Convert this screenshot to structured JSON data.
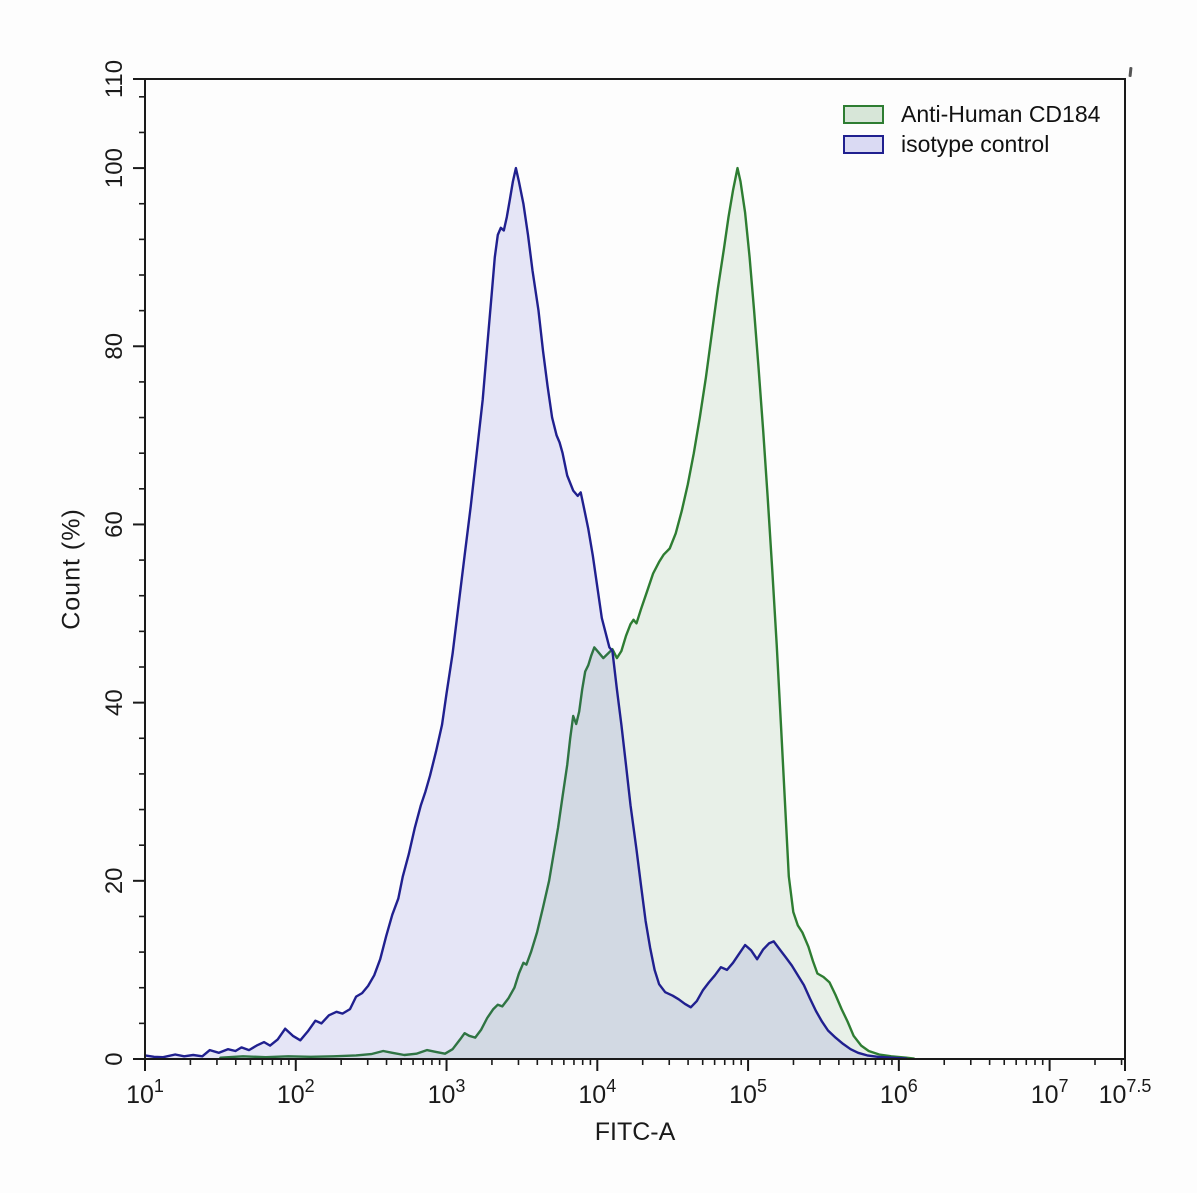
{
  "chart_data": {
    "type": "area",
    "title": "",
    "xlabel": "FITC-A",
    "ylabel": "Count (%)",
    "x_scale": "log10",
    "x_axis": {
      "base_label": "10",
      "decade_ticks": [
        1,
        2,
        3,
        4,
        5,
        6,
        7,
        7.5
      ],
      "tick_exponent_labels": [
        "1",
        "2",
        "3",
        "4",
        "5",
        "6",
        "7",
        "7.5"
      ],
      "range_log10": [
        1,
        7.5
      ],
      "minor_ticks": "log-spaced 2..9 per decade"
    },
    "y_axis": {
      "ylim": [
        0,
        110
      ],
      "major_ticks": [
        0,
        20,
        40,
        60,
        80,
        100,
        110
      ],
      "major_tick_labels": [
        "0",
        "20",
        "40",
        "60",
        "80",
        "100",
        "110"
      ],
      "minor_tick_step": 4,
      "tick_label_rotation_deg": -90
    },
    "grid": "off",
    "legend_position": "top-right-inside",
    "frame": "full box",
    "colors": {
      "axis": "#1a1a1a",
      "background": "#fdfdfd",
      "green_stroke": "#2e7d32",
      "green_fill": "rgba(46,125,50,0.10)",
      "blue_stroke": "#20208f",
      "blue_fill": "rgba(60,60,200,0.12)",
      "legend_green_fill": "rgba(46,125,50,0.18)",
      "legend_blue_fill": "rgba(60,60,200,0.18)"
    },
    "series": [
      {
        "name": "Anti-Human CD184",
        "stroke": "#2e7d32",
        "fill": "rgba(46,125,50,0.10)",
        "peak": {
          "x_log10": 4.93,
          "y_percent": 100
        },
        "points": [
          [
            1.5,
            0.15
          ],
          [
            1.65,
            0.3
          ],
          [
            1.8,
            0.2
          ],
          [
            1.95,
            0.3
          ],
          [
            2.1,
            0.25
          ],
          [
            2.25,
            0.3
          ],
          [
            2.4,
            0.4
          ],
          [
            2.5,
            0.55
          ],
          [
            2.58,
            0.9
          ],
          [
            2.64,
            0.7
          ],
          [
            2.72,
            0.45
          ],
          [
            2.8,
            0.6
          ],
          [
            2.87,
            1.0
          ],
          [
            2.93,
            0.8
          ],
          [
            2.99,
            0.6
          ],
          [
            3.04,
            1.1
          ],
          [
            3.09,
            2.2
          ],
          [
            3.12,
            2.9
          ],
          [
            3.15,
            2.6
          ],
          [
            3.19,
            2.4
          ],
          [
            3.23,
            3.3
          ],
          [
            3.27,
            4.6
          ],
          [
            3.31,
            5.6
          ],
          [
            3.34,
            6.1
          ],
          [
            3.37,
            5.9
          ],
          [
            3.41,
            6.8
          ],
          [
            3.45,
            8.0
          ],
          [
            3.48,
            9.6
          ],
          [
            3.51,
            10.8
          ],
          [
            3.53,
            10.6
          ],
          [
            3.56,
            12.0
          ],
          [
            3.6,
            14.2
          ],
          [
            3.64,
            17.0
          ],
          [
            3.68,
            20.0
          ],
          [
            3.71,
            23.0
          ],
          [
            3.74,
            26.0
          ],
          [
            3.77,
            29.5
          ],
          [
            3.8,
            33.0
          ],
          [
            3.82,
            36.0
          ],
          [
            3.84,
            38.5
          ],
          [
            3.86,
            37.6
          ],
          [
            3.88,
            39.0
          ],
          [
            3.9,
            41.5
          ],
          [
            3.92,
            43.5
          ],
          [
            3.94,
            44.2
          ],
          [
            3.96,
            45.3
          ],
          [
            3.98,
            46.2
          ],
          [
            4.01,
            45.6
          ],
          [
            4.04,
            45.0
          ],
          [
            4.07,
            45.5
          ],
          [
            4.1,
            46.0
          ],
          [
            4.13,
            45.0
          ],
          [
            4.16,
            45.8
          ],
          [
            4.19,
            47.5
          ],
          [
            4.22,
            48.8
          ],
          [
            4.24,
            49.3
          ],
          [
            4.26,
            48.9
          ],
          [
            4.29,
            50.5
          ],
          [
            4.33,
            52.5
          ],
          [
            4.37,
            54.5
          ],
          [
            4.41,
            55.8
          ],
          [
            4.44,
            56.6
          ],
          [
            4.48,
            57.3
          ],
          [
            4.52,
            59.0
          ],
          [
            4.56,
            61.5
          ],
          [
            4.6,
            64.5
          ],
          [
            4.64,
            68.0
          ],
          [
            4.68,
            72.0
          ],
          [
            4.72,
            76.5
          ],
          [
            4.76,
            81.5
          ],
          [
            4.8,
            86.5
          ],
          [
            4.84,
            91.0
          ],
          [
            4.87,
            94.5
          ],
          [
            4.9,
            97.5
          ],
          [
            4.93,
            100.0
          ],
          [
            4.95,
            98.5
          ],
          [
            4.98,
            95.0
          ],
          [
            5.01,
            90.0
          ],
          [
            5.04,
            84.0
          ],
          [
            5.07,
            77.5
          ],
          [
            5.1,
            70.5
          ],
          [
            5.13,
            63.0
          ],
          [
            5.16,
            55.0
          ],
          [
            5.19,
            46.5
          ],
          [
            5.22,
            37.0
          ],
          [
            5.25,
            27.0
          ],
          [
            5.27,
            20.5
          ],
          [
            5.3,
            16.5
          ],
          [
            5.33,
            15.0
          ],
          [
            5.36,
            14.2
          ],
          [
            5.4,
            12.6
          ],
          [
            5.43,
            11.0
          ],
          [
            5.46,
            9.6
          ],
          [
            5.5,
            9.2
          ],
          [
            5.54,
            8.6
          ],
          [
            5.58,
            7.2
          ],
          [
            5.62,
            5.6
          ],
          [
            5.66,
            4.2
          ],
          [
            5.7,
            2.6
          ],
          [
            5.75,
            1.5
          ],
          [
            5.8,
            0.9
          ],
          [
            5.87,
            0.5
          ],
          [
            5.95,
            0.3
          ],
          [
            6.05,
            0.15
          ],
          [
            6.1,
            0.05
          ]
        ]
      },
      {
        "name": "isotype control",
        "stroke": "#20208f",
        "fill": "rgba(60,60,200,0.12)",
        "peak": {
          "x_log10": 3.46,
          "y_percent": 100
        },
        "points": [
          [
            1.0,
            0.4
          ],
          [
            1.06,
            0.25
          ],
          [
            1.12,
            0.2
          ],
          [
            1.2,
            0.5
          ],
          [
            1.26,
            0.3
          ],
          [
            1.32,
            0.45
          ],
          [
            1.38,
            0.3
          ],
          [
            1.43,
            1.0
          ],
          [
            1.49,
            0.7
          ],
          [
            1.55,
            1.1
          ],
          [
            1.6,
            0.9
          ],
          [
            1.64,
            1.3
          ],
          [
            1.69,
            1.0
          ],
          [
            1.74,
            1.5
          ],
          [
            1.79,
            1.9
          ],
          [
            1.83,
            1.5
          ],
          [
            1.88,
            2.2
          ],
          [
            1.93,
            3.4
          ],
          [
            1.98,
            2.6
          ],
          [
            2.03,
            2.1
          ],
          [
            2.08,
            3.1
          ],
          [
            2.13,
            4.3
          ],
          [
            2.17,
            4.0
          ],
          [
            2.22,
            4.9
          ],
          [
            2.27,
            5.3
          ],
          [
            2.31,
            5.1
          ],
          [
            2.36,
            5.6
          ],
          [
            2.4,
            7.0
          ],
          [
            2.44,
            7.4
          ],
          [
            2.48,
            8.2
          ],
          [
            2.52,
            9.4
          ],
          [
            2.56,
            11.2
          ],
          [
            2.6,
            13.8
          ],
          [
            2.64,
            16.2
          ],
          [
            2.68,
            18.0
          ],
          [
            2.71,
            20.5
          ],
          [
            2.75,
            23.0
          ],
          [
            2.79,
            26.0
          ],
          [
            2.83,
            28.5
          ],
          [
            2.86,
            30.0
          ],
          [
            2.89,
            31.8
          ],
          [
            2.93,
            34.5
          ],
          [
            2.97,
            37.5
          ],
          [
            3.0,
            41.0
          ],
          [
            3.04,
            45.5
          ],
          [
            3.08,
            51.0
          ],
          [
            3.12,
            56.5
          ],
          [
            3.16,
            62.0
          ],
          [
            3.2,
            68.0
          ],
          [
            3.24,
            74.0
          ],
          [
            3.27,
            80.0
          ],
          [
            3.3,
            86.0
          ],
          [
            3.32,
            90.0
          ],
          [
            3.34,
            92.5
          ],
          [
            3.36,
            93.3
          ],
          [
            3.38,
            93.0
          ],
          [
            3.4,
            94.5
          ],
          [
            3.42,
            96.5
          ],
          [
            3.44,
            98.5
          ],
          [
            3.46,
            100.0
          ],
          [
            3.48,
            98.5
          ],
          [
            3.51,
            96.0
          ],
          [
            3.54,
            92.5
          ],
          [
            3.57,
            88.5
          ],
          [
            3.61,
            84.0
          ],
          [
            3.64,
            79.5
          ],
          [
            3.67,
            75.5
          ],
          [
            3.7,
            72.0
          ],
          [
            3.73,
            70.0
          ],
          [
            3.75,
            69.2
          ],
          [
            3.77,
            68.0
          ],
          [
            3.8,
            65.5
          ],
          [
            3.84,
            63.8
          ],
          [
            3.87,
            63.2
          ],
          [
            3.89,
            63.6
          ],
          [
            3.91,
            62.0
          ],
          [
            3.94,
            59.5
          ],
          [
            3.97,
            56.5
          ],
          [
            4.0,
            53.0
          ],
          [
            4.03,
            49.5
          ],
          [
            4.06,
            47.5
          ],
          [
            4.08,
            46.2
          ],
          [
            4.1,
            45.8
          ],
          [
            4.13,
            41.5
          ],
          [
            4.16,
            37.5
          ],
          [
            4.19,
            33.0
          ],
          [
            4.22,
            28.5
          ],
          [
            4.26,
            23.5
          ],
          [
            4.29,
            19.5
          ],
          [
            4.32,
            15.5
          ],
          [
            4.35,
            12.5
          ],
          [
            4.38,
            10.0
          ],
          [
            4.41,
            8.4
          ],
          [
            4.45,
            7.5
          ],
          [
            4.5,
            7.1
          ],
          [
            4.54,
            6.7
          ],
          [
            4.58,
            6.2
          ],
          [
            4.62,
            5.8
          ],
          [
            4.66,
            6.5
          ],
          [
            4.7,
            7.7
          ],
          [
            4.74,
            8.6
          ],
          [
            4.78,
            9.4
          ],
          [
            4.82,
            10.3
          ],
          [
            4.86,
            10.0
          ],
          [
            4.9,
            10.8
          ],
          [
            4.94,
            11.8
          ],
          [
            4.98,
            12.8
          ],
          [
            5.02,
            12.2
          ],
          [
            5.06,
            11.2
          ],
          [
            5.1,
            12.3
          ],
          [
            5.14,
            13.0
          ],
          [
            5.17,
            13.2
          ],
          [
            5.21,
            12.3
          ],
          [
            5.25,
            11.4
          ],
          [
            5.29,
            10.5
          ],
          [
            5.33,
            9.4
          ],
          [
            5.37,
            8.3
          ],
          [
            5.41,
            6.8
          ],
          [
            5.45,
            5.4
          ],
          [
            5.49,
            4.2
          ],
          [
            5.53,
            3.2
          ],
          [
            5.58,
            2.4
          ],
          [
            5.63,
            1.7
          ],
          [
            5.68,
            1.1
          ],
          [
            5.73,
            0.7
          ],
          [
            5.79,
            0.4
          ],
          [
            5.86,
            0.25
          ],
          [
            5.95,
            0.15
          ],
          [
            6.05,
            0.05
          ]
        ]
      }
    ]
  }
}
